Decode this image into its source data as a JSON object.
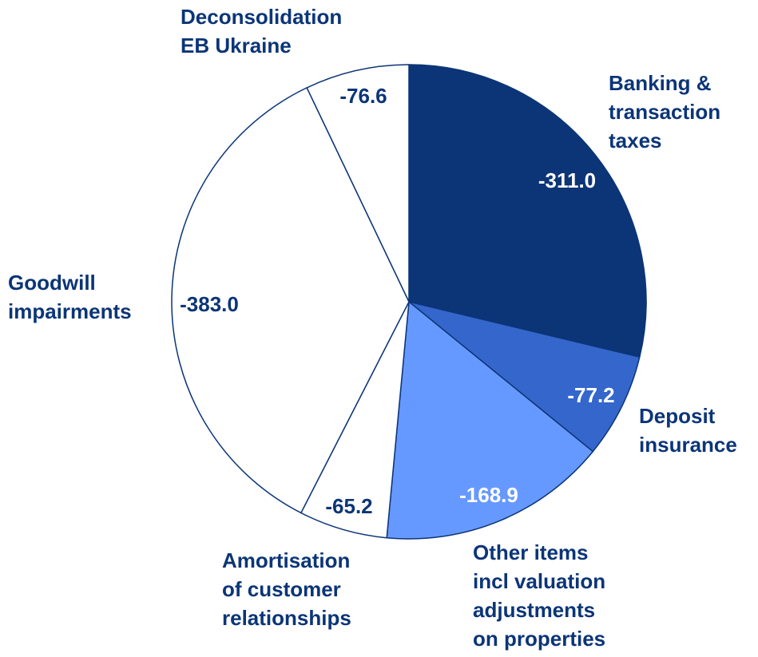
{
  "chart_data": {
    "type": "pie",
    "categories": [
      "Banking &\ntransaction\ntaxes",
      "Deposit\ninsurance",
      "Other items\nincl valuation\nadjustments\non properties",
      "Amortisation\nof customer\nrelationships",
      "Goodwill\nimpairments",
      "Deconsolidation\nEB Ukraine"
    ],
    "values": [
      -311.0,
      -77.2,
      -168.9,
      -65.2,
      -383.0,
      -76.6
    ],
    "value_labels": [
      "-311.0",
      "-77.2",
      "-168.9",
      "-65.2",
      "-383.0",
      "-76.6"
    ],
    "colors": [
      "#0b3577",
      "#3566cc",
      "#6699ff",
      "#ffffff",
      "#ffffff",
      "#ffffff"
    ]
  }
}
